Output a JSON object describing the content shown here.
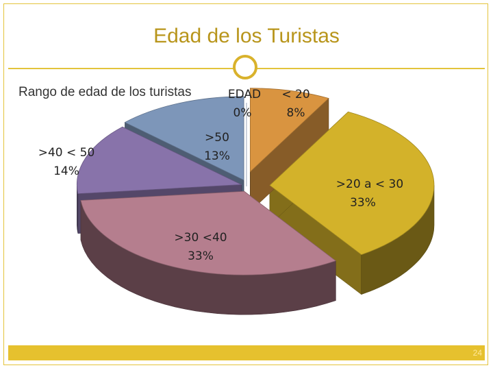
{
  "slide": {
    "title": "Edad de los Turistas",
    "page_number": "24"
  },
  "colors": {
    "accent": "#e3c33a",
    "title": "#b8951b"
  },
  "chart_data": {
    "type": "pie",
    "style": "3d-exploded",
    "title": "Rango de edad de los turistas",
    "series_name": "",
    "slices": [
      {
        "label": "< 20",
        "percent_label": "8%",
        "value": 8,
        "color": "#d99440"
      },
      {
        "label": ">20  a < 30",
        "percent_label": "33%",
        "value": 33,
        "color": "#d3b22a"
      },
      {
        "label": ">30 <40",
        "percent_label": "33%",
        "value": 33,
        "color": "#b57e8e"
      },
      {
        "label": ">40 < 50",
        "percent_label": "14%",
        "value": 14,
        "color": "#8873aa"
      },
      {
        "label": ">50",
        "percent_label": "13%",
        "value": 13,
        "color": "#7d96b9"
      },
      {
        "label": "EDAD",
        "percent_label": "0%",
        "value": 0,
        "color": "#9aa6b8"
      }
    ]
  }
}
